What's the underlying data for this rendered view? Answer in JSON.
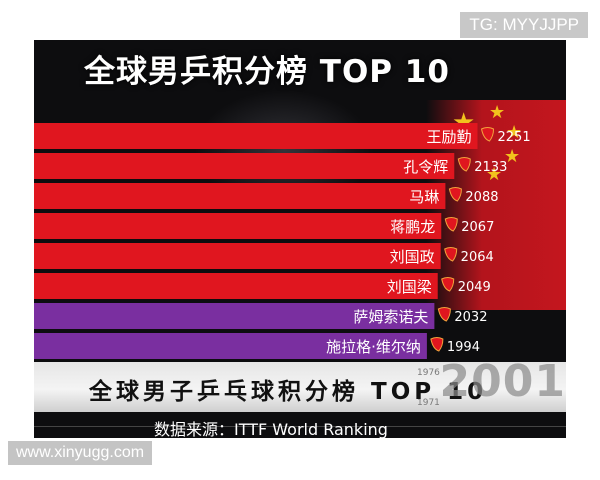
{
  "watermarks": {
    "top": "TG: MYYJJPP",
    "bottom": "www.xinyugg.com"
  },
  "title": "全球男乒积分榜 TOP 10",
  "caption": {
    "title": "全球男子乒乓球积分榜 TOP 10",
    "year": "2001",
    "small_years": [
      "1976",
      "1971"
    ],
    "source": "数据来源：ITTF World Ranking"
  },
  "colors": {
    "china_bar": "#e0161f",
    "other_bar": "#7a2fa0",
    "background": "#0d0d0f",
    "flag": "#c4161e",
    "star": "#f2c21d"
  },
  "chart_data": {
    "type": "bar",
    "orientation": "horizontal",
    "title": "全球男乒积分榜 TOP 10",
    "xlabel": "",
    "ylabel": "",
    "categories": [
      "王励勤",
      "孔令辉",
      "马琳",
      "蒋鹏龙",
      "刘国政",
      "刘国梁",
      "萨姆索诺夫",
      "施拉格·维尔纳"
    ],
    "values": [
      2251,
      2133,
      2088,
      2067,
      2064,
      2049,
      2032,
      1994
    ],
    "bar_colors": [
      "china",
      "china",
      "china",
      "china",
      "china",
      "china",
      "other",
      "other"
    ],
    "xlim": [
      0,
      2700
    ],
    "grid": false,
    "legend": "none"
  }
}
